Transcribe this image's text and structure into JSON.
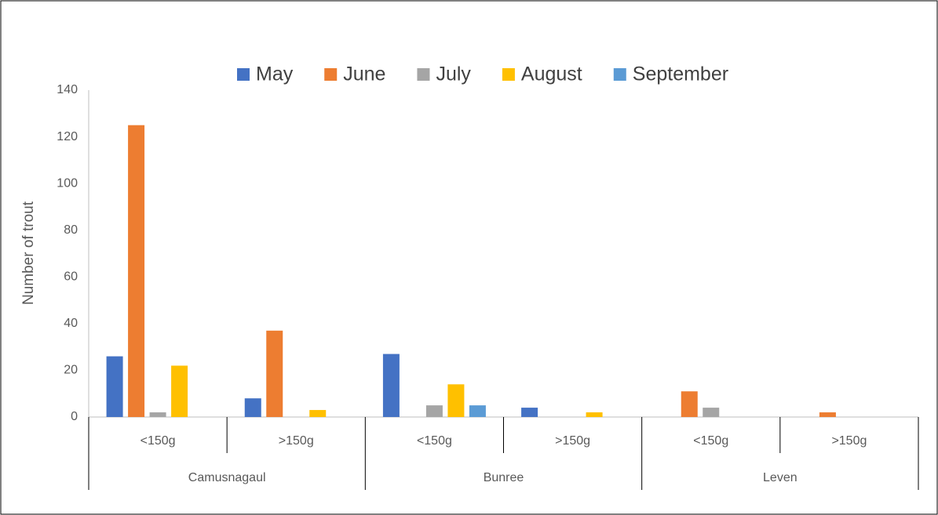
{
  "chart_data": {
    "type": "bar",
    "y_label": "Number of trout",
    "categories": [
      "<150g",
      ">150g",
      "<150g",
      ">150g",
      "<150g",
      ">150g"
    ],
    "groups": [
      "Camusnagaul",
      "Bunree",
      "Leven"
    ],
    "series": [
      {
        "name": "May",
        "color": "#4472c4",
        "values": [
          26,
          8,
          27,
          4,
          0,
          0
        ]
      },
      {
        "name": "June",
        "color": "#ed7d31",
        "values": [
          125,
          37,
          0,
          0,
          11,
          2
        ]
      },
      {
        "name": "July",
        "color": "#a5a5a5",
        "values": [
          2,
          0,
          5,
          0,
          4,
          0
        ]
      },
      {
        "name": "August",
        "color": "#ffc000",
        "values": [
          22,
          3,
          14,
          2,
          0,
          0
        ]
      },
      {
        "name": "September",
        "color": "#5b9bd5",
        "values": [
          0,
          0,
          5,
          0,
          0,
          0
        ]
      }
    ],
    "ylim": [
      0,
      140
    ],
    "yticks": [
      0,
      20,
      40,
      60,
      80,
      100,
      120,
      140
    ],
    "grid": false
  }
}
